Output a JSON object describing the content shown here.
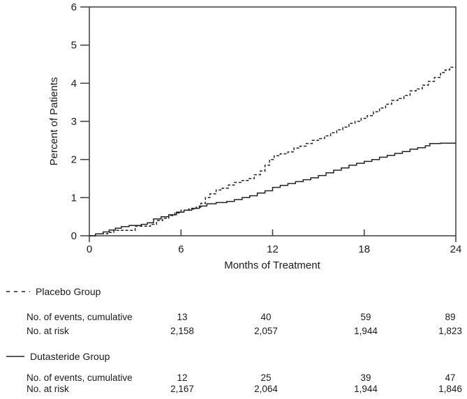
{
  "chart_data": {
    "type": "line",
    "title": "",
    "xlabel": "Months of Treatment",
    "ylabel": "Percent of Patients",
    "xlim": [
      0,
      24
    ],
    "ylim": [
      0,
      6
    ],
    "xticks": [
      0,
      6,
      12,
      18,
      24
    ],
    "yticks": [
      0,
      1,
      2,
      3,
      4,
      5,
      6
    ],
    "grid": false,
    "legend_position": "below-left",
    "line_color": "#222222",
    "groups": [
      {
        "name": "Placebo Group",
        "line_style": "dashed",
        "events_row_label": "No. of events, cumulative",
        "risk_row_label": "No. at risk",
        "events_cumulative": [
          "13",
          "40",
          "59",
          "89"
        ],
        "no_at_risk": [
          "2,158",
          "2,057",
          "1,944",
          "1,823"
        ],
        "curve_points": [
          [
            0,
            0
          ],
          [
            0.4,
            0.05
          ],
          [
            1.2,
            0.09
          ],
          [
            1.6,
            0.14
          ],
          [
            2.4,
            0.14
          ],
          [
            3.0,
            0.25
          ],
          [
            4.0,
            0.3
          ],
          [
            4.4,
            0.4
          ],
          [
            4.8,
            0.46
          ],
          [
            5.2,
            0.53
          ],
          [
            5.6,
            0.6
          ],
          [
            6.0,
            0.67
          ],
          [
            6.5,
            0.7
          ],
          [
            7.0,
            0.75
          ],
          [
            7.3,
            0.85
          ],
          [
            7.6,
            1.0
          ],
          [
            7.9,
            1.1
          ],
          [
            8.3,
            1.2
          ],
          [
            8.7,
            1.25
          ],
          [
            9.1,
            1.33
          ],
          [
            9.5,
            1.4
          ],
          [
            10.0,
            1.45
          ],
          [
            10.4,
            1.5
          ],
          [
            10.8,
            1.6
          ],
          [
            11.2,
            1.7
          ],
          [
            11.5,
            1.85
          ],
          [
            11.8,
            2.0
          ],
          [
            12.1,
            2.1
          ],
          [
            12.5,
            2.15
          ],
          [
            13.0,
            2.2
          ],
          [
            13.4,
            2.3
          ],
          [
            13.8,
            2.35
          ],
          [
            14.2,
            2.42
          ],
          [
            14.6,
            2.5
          ],
          [
            15.0,
            2.55
          ],
          [
            15.4,
            2.62
          ],
          [
            15.8,
            2.7
          ],
          [
            16.2,
            2.78
          ],
          [
            16.6,
            2.85
          ],
          [
            17.0,
            2.95
          ],
          [
            17.4,
            3.0
          ],
          [
            17.8,
            3.08
          ],
          [
            18.2,
            3.15
          ],
          [
            18.6,
            3.25
          ],
          [
            19.0,
            3.35
          ],
          [
            19.4,
            3.45
          ],
          [
            19.8,
            3.55
          ],
          [
            20.2,
            3.6
          ],
          [
            20.6,
            3.68
          ],
          [
            21.0,
            3.8
          ],
          [
            21.4,
            3.85
          ],
          [
            21.8,
            3.95
          ],
          [
            22.2,
            4.05
          ],
          [
            22.6,
            4.15
          ],
          [
            23.0,
            4.28
          ],
          [
            23.3,
            4.35
          ],
          [
            23.6,
            4.42
          ],
          [
            24,
            4.42
          ]
        ]
      },
      {
        "name": "Dutasteride Group",
        "line_style": "solid",
        "events_row_label": "No. of events, cumulative",
        "risk_row_label": "No. at risk",
        "events_cumulative": [
          "12",
          "25",
          "39",
          "47"
        ],
        "no_at_risk": [
          "2,167",
          "2,064",
          "1,944",
          "1,846"
        ],
        "curve_points": [
          [
            0,
            0
          ],
          [
            0.4,
            0.05
          ],
          [
            0.9,
            0.1
          ],
          [
            1.3,
            0.15
          ],
          [
            1.7,
            0.2
          ],
          [
            2.1,
            0.24
          ],
          [
            2.6,
            0.27
          ],
          [
            3.4,
            0.3
          ],
          [
            3.8,
            0.34
          ],
          [
            4.2,
            0.44
          ],
          [
            4.7,
            0.5
          ],
          [
            5.2,
            0.55
          ],
          [
            5.7,
            0.62
          ],
          [
            6.2,
            0.67
          ],
          [
            6.7,
            0.72
          ],
          [
            7.2,
            0.78
          ],
          [
            7.7,
            0.84
          ],
          [
            8.3,
            0.87
          ],
          [
            9.0,
            0.9
          ],
          [
            9.5,
            0.95
          ],
          [
            10.0,
            1.0
          ],
          [
            10.5,
            1.05
          ],
          [
            11.0,
            1.12
          ],
          [
            11.5,
            1.18
          ],
          [
            12.0,
            1.27
          ],
          [
            12.5,
            1.32
          ],
          [
            13.0,
            1.37
          ],
          [
            13.5,
            1.42
          ],
          [
            14.0,
            1.47
          ],
          [
            14.5,
            1.52
          ],
          [
            15.0,
            1.58
          ],
          [
            15.5,
            1.65
          ],
          [
            16.0,
            1.72
          ],
          [
            16.5,
            1.78
          ],
          [
            17.0,
            1.85
          ],
          [
            17.5,
            1.9
          ],
          [
            18.0,
            1.95
          ],
          [
            18.5,
            2.0
          ],
          [
            19.0,
            2.06
          ],
          [
            19.5,
            2.11
          ],
          [
            20.0,
            2.16
          ],
          [
            20.5,
            2.21
          ],
          [
            21.0,
            2.27
          ],
          [
            21.5,
            2.31
          ],
          [
            22.0,
            2.36
          ],
          [
            22.3,
            2.42
          ],
          [
            23.0,
            2.43
          ],
          [
            24,
            2.43
          ]
        ]
      }
    ]
  }
}
